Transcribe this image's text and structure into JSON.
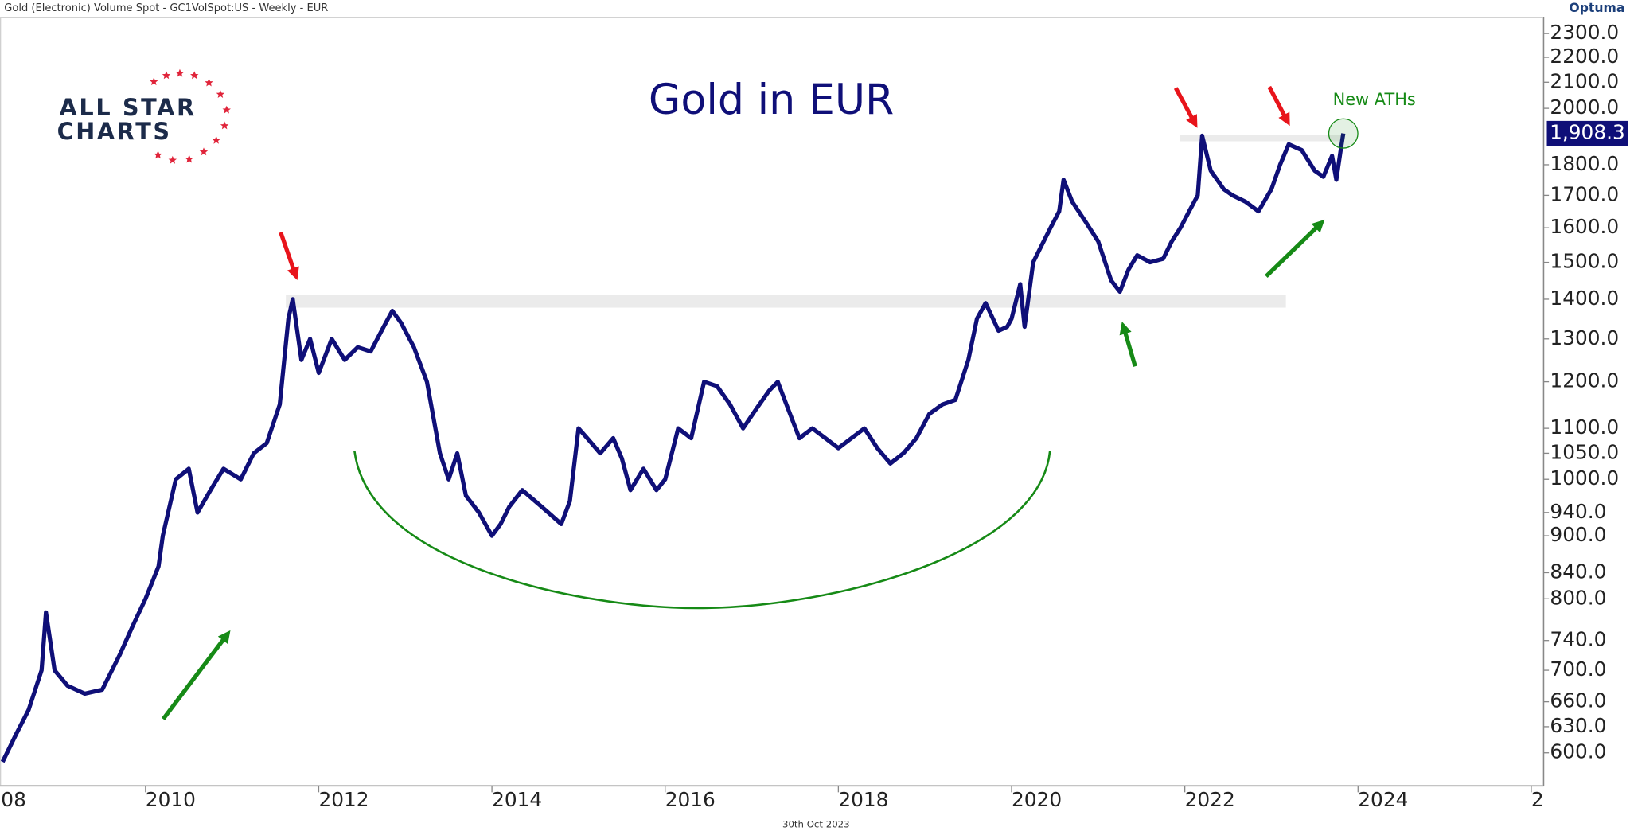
{
  "chart_data": {
    "type": "line",
    "header": "Gold (Electronic) Volume Spot - GC1VolSpot:US - Weekly - EUR",
    "title": "Gold in EUR",
    "footer": "30th Oct 2023",
    "brand": "Optuma",
    "logo_text": [
      "ALL STAR",
      "CHARTS"
    ],
    "annotations": [
      "New ATHs"
    ],
    "log_scale": true,
    "grid": false,
    "color": "#0f0f78",
    "x": [
      2008.35,
      2008.5,
      2008.65,
      2008.8,
      2008.85,
      2008.95,
      2009.1,
      2009.3,
      2009.5,
      2009.7,
      2009.85,
      2010.0,
      2010.15,
      2010.2,
      2010.35,
      2010.5,
      2010.6,
      2010.75,
      2010.9,
      2011.1,
      2011.25,
      2011.4,
      2011.55,
      2011.65,
      2011.7,
      2011.8,
      2011.9,
      2012.0,
      2012.15,
      2012.3,
      2012.45,
      2012.6,
      2012.75,
      2012.85,
      2012.95,
      2013.1,
      2013.25,
      2013.4,
      2013.5,
      2013.6,
      2013.7,
      2013.85,
      2014.0,
      2014.1,
      2014.2,
      2014.35,
      2014.5,
      2014.65,
      2014.8,
      2014.9,
      2015.0,
      2015.1,
      2015.25,
      2015.4,
      2015.5,
      2015.6,
      2015.75,
      2015.9,
      2016.0,
      2016.15,
      2016.3,
      2016.45,
      2016.6,
      2016.75,
      2016.9,
      2017.05,
      2017.2,
      2017.3,
      2017.4,
      2017.55,
      2017.7,
      2017.85,
      2018.0,
      2018.15,
      2018.3,
      2018.45,
      2018.6,
      2018.75,
      2018.9,
      2019.05,
      2019.2,
      2019.35,
      2019.5,
      2019.6,
      2019.7,
      2019.85,
      2019.95,
      2020.0,
      2020.1,
      2020.15,
      2020.25,
      2020.35,
      2020.45,
      2020.55,
      2020.6,
      2020.7,
      2020.85,
      2021.0,
      2021.15,
      2021.25,
      2021.35,
      2021.45,
      2021.6,
      2021.75,
      2021.85,
      2021.95,
      2022.05,
      2022.15,
      2022.2,
      2022.3,
      2022.45,
      2022.55,
      2022.7,
      2022.85,
      2023.0,
      2023.1,
      2023.2,
      2023.35,
      2023.5,
      2023.6,
      2023.7,
      2023.75,
      2023.8,
      2023.83
    ],
    "values": [
      590,
      620,
      650,
      700,
      780,
      700,
      680,
      670,
      675,
      720,
      760,
      800,
      850,
      900,
      1000,
      1020,
      940,
      980,
      1020,
      1000,
      1050,
      1070,
      1150,
      1350,
      1400,
      1250,
      1300,
      1220,
      1300,
      1250,
      1280,
      1270,
      1330,
      1370,
      1340,
      1280,
      1200,
      1050,
      1000,
      1050,
      970,
      940,
      900,
      920,
      950,
      980,
      960,
      940,
      920,
      960,
      1100,
      1080,
      1050,
      1080,
      1040,
      980,
      1020,
      980,
      1000,
      1100,
      1080,
      1200,
      1190,
      1150,
      1100,
      1140,
      1180,
      1200,
      1150,
      1080,
      1100,
      1080,
      1060,
      1080,
      1100,
      1060,
      1030,
      1050,
      1080,
      1130,
      1150,
      1160,
      1250,
      1350,
      1390,
      1320,
      1330,
      1350,
      1440,
      1330,
      1500,
      1550,
      1600,
      1650,
      1750,
      1680,
      1620,
      1560,
      1450,
      1420,
      1480,
      1520,
      1500,
      1510,
      1560,
      1600,
      1650,
      1700,
      1900,
      1780,
      1720,
      1700,
      1680,
      1650,
      1720,
      1800,
      1870,
      1850,
      1780,
      1760,
      1830,
      1750,
      1850,
      1908.3
    ],
    "price_label": {
      "value": 1908.3,
      "label": "1,908.3"
    },
    "xlim": [
      2008.32,
      2026.18
    ],
    "xticks": [
      {
        "value": 2008,
        "label": "08"
      },
      2010,
      2012,
      2014,
      2016,
      2018,
      2020,
      2022,
      2024,
      {
        "value": 2026,
        "label": "2"
      }
    ],
    "ylim": [
      565,
      2364
    ],
    "yticks": [
      {
        "value": 600,
        "label": "600.0"
      },
      {
        "value": 630,
        "label": "630.0"
      },
      {
        "value": 660,
        "label": "660.0"
      },
      {
        "value": 700,
        "label": "700.0"
      },
      {
        "value": 740,
        "label": "740.0"
      },
      {
        "value": 800,
        "label": "800.0"
      },
      {
        "value": 840,
        "label": "840.0"
      },
      {
        "value": 900,
        "label": "900.0"
      },
      {
        "value": 940,
        "label": "940.0"
      },
      {
        "value": 1000,
        "label": "1000.0"
      },
      {
        "value": 1050,
        "label": "1050.0"
      },
      {
        "value": 1100,
        "label": "1100.0"
      },
      {
        "value": 1200,
        "label": "1200.0"
      },
      {
        "value": 1300,
        "label": "1300.0"
      },
      {
        "value": 1400,
        "label": "1400.0"
      },
      {
        "value": 1500,
        "label": "1500.0"
      },
      {
        "value": 1600,
        "label": "1600.0"
      },
      {
        "value": 1700,
        "label": "1700.0"
      },
      {
        "value": 1800,
        "label": "1800.0"
      },
      {
        "value": 2000,
        "label": "2000.0"
      },
      {
        "value": 2100,
        "label": "2100.0"
      },
      {
        "value": 2200,
        "label": "2200.0"
      },
      {
        "value": 2300,
        "label": "2300.0"
      }
    ]
  }
}
